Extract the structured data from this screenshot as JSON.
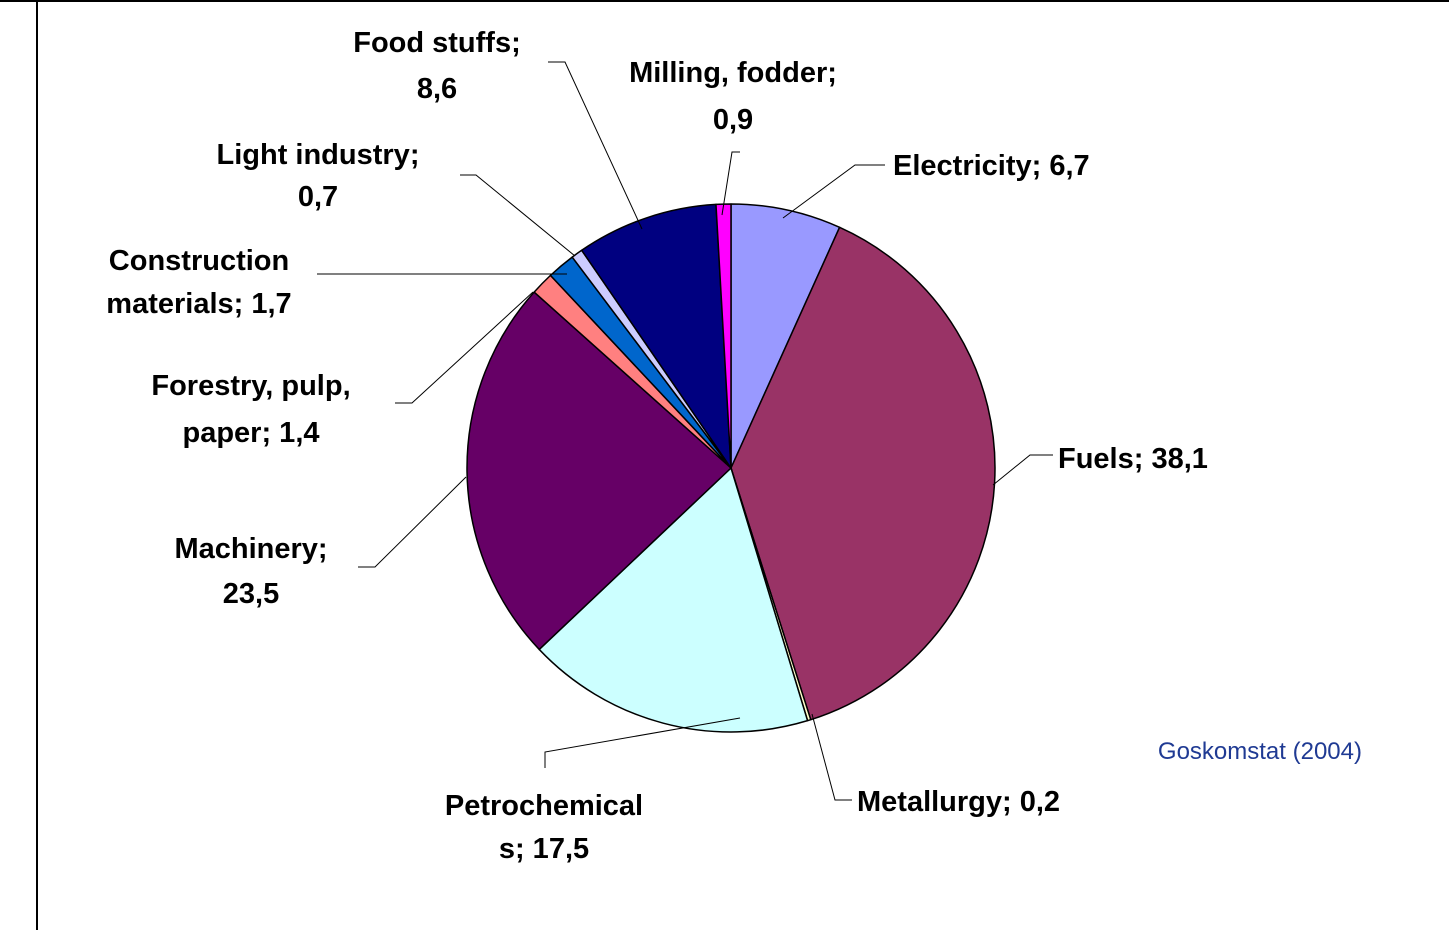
{
  "chart_data": {
    "type": "pie",
    "unit_note": "",
    "slices": [
      {
        "label": "Electricity",
        "value": 6.7,
        "display": "6,7",
        "color": "#9999ff"
      },
      {
        "label": "Fuels",
        "value": 38.1,
        "display": "38,1",
        "color": "#993366"
      },
      {
        "label": "Metallurgy",
        "value": 0.2,
        "display": "0,2",
        "color": "#ffffcc"
      },
      {
        "label": "Petrochemicals",
        "value": 17.5,
        "display": "17,5",
        "color": "#ccffff"
      },
      {
        "label": "Machinery",
        "value": 23.5,
        "display": "23,5",
        "color": "#660066"
      },
      {
        "label": "Forestry, pulp, paper",
        "value": 1.4,
        "display": "1,4",
        "color": "#ff8080"
      },
      {
        "label": "Construction materials",
        "value": 1.7,
        "display": "1,7",
        "color": "#0066cc"
      },
      {
        "label": "Light industry",
        "value": 0.7,
        "display": "0,7",
        "color": "#ccccff"
      },
      {
        "label": "Food stuffs",
        "value": 8.6,
        "display": "8,6",
        "color": "#000080"
      },
      {
        "label": "Milling, fodder",
        "value": 0.9,
        "display": "0,9",
        "color": "#ff00ff"
      }
    ],
    "labels": {
      "electricity": [
        "Electricity; 6,7"
      ],
      "fuels": [
        "Fuels; 38,1"
      ],
      "metallurgy": [
        "Metallurgy; 0,2"
      ],
      "petrochemicals": [
        "Petrochemical",
        "s; 17,5"
      ],
      "machinery": [
        "Machinery;",
        "23,5"
      ],
      "forestry": [
        "Forestry, pulp,",
        "paper; 1,4"
      ],
      "construction": [
        "Construction",
        "materials; 1,7"
      ],
      "light": [
        "Light industry;",
        "0,7"
      ],
      "food": [
        "Food stuffs;",
        "8,6"
      ],
      "milling": [
        "Milling, fodder;",
        "0,9"
      ]
    }
  },
  "source": "Goskomstat (2004)"
}
